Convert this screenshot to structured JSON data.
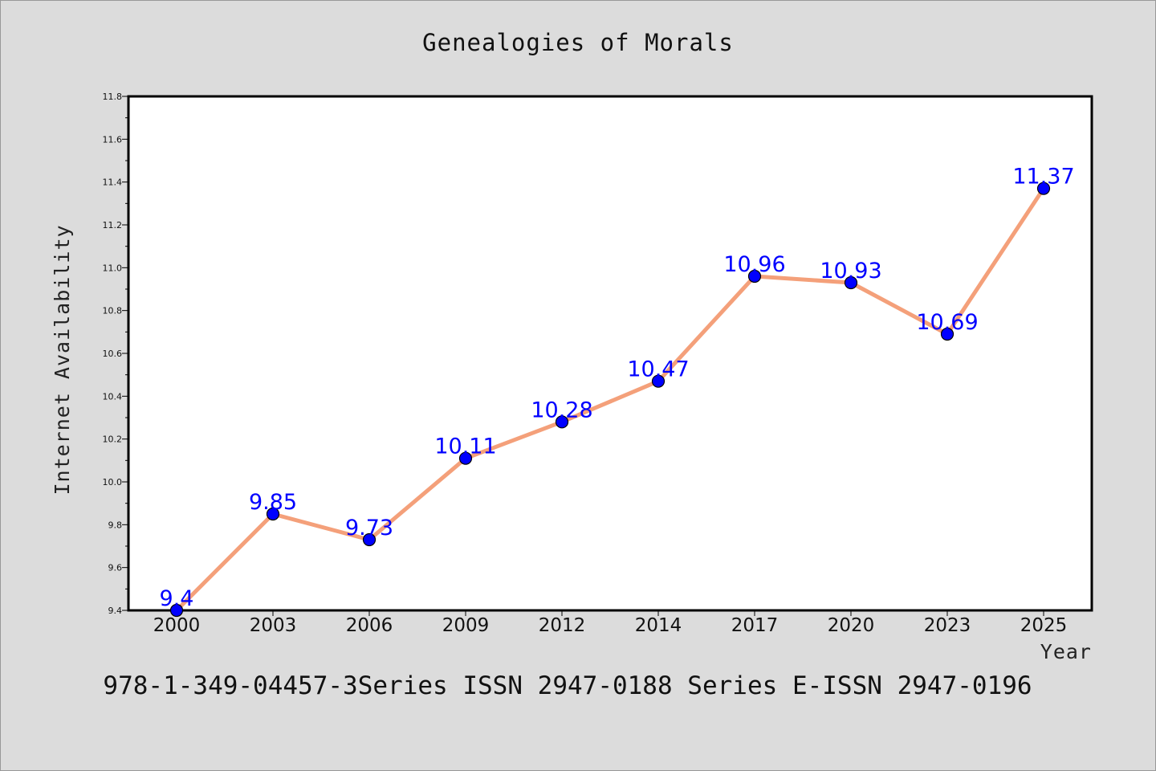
{
  "chart_data": {
    "type": "line",
    "title": "Genealogies of Morals",
    "xlabel": "Year",
    "ylabel": "Internet Availability",
    "categories": [
      "2000",
      "2003",
      "2006",
      "2009",
      "2012",
      "2014",
      "2017",
      "2020",
      "2023",
      "2025"
    ],
    "series": [
      {
        "values": [
          9.4,
          9.85,
          9.73,
          10.11,
          10.28,
          10.47,
          10.96,
          10.93,
          10.69,
          11.37
        ],
        "data_labels": [
          "9.4",
          "9.85",
          "9.73",
          "10.11",
          "10.28",
          "10.47",
          "10.96",
          "10.93",
          "10.69",
          "11.37"
        ],
        "line_color": "#f4a07a",
        "marker_color": "#0000ff"
      }
    ],
    "ylim": [
      9.4,
      11.8
    ],
    "yticks": [
      "9.4",
      "9.6",
      "9.8",
      "10.0",
      "10.2",
      "10.4",
      "10.6",
      "10.8",
      "11.0",
      "11.2",
      "11.4",
      "11.6",
      "11.8"
    ],
    "grid": false,
    "legend": "none"
  },
  "footer": {
    "text": "978-1-349-04457-3Series ISSN 2947-0188 Series E-ISSN 2947-0196"
  },
  "colors": {
    "background": "#dcdcdc",
    "plot_background": "#ffffff",
    "line": "#f4a07a",
    "marker": "#0000ff",
    "data_label": "#0000ff"
  }
}
